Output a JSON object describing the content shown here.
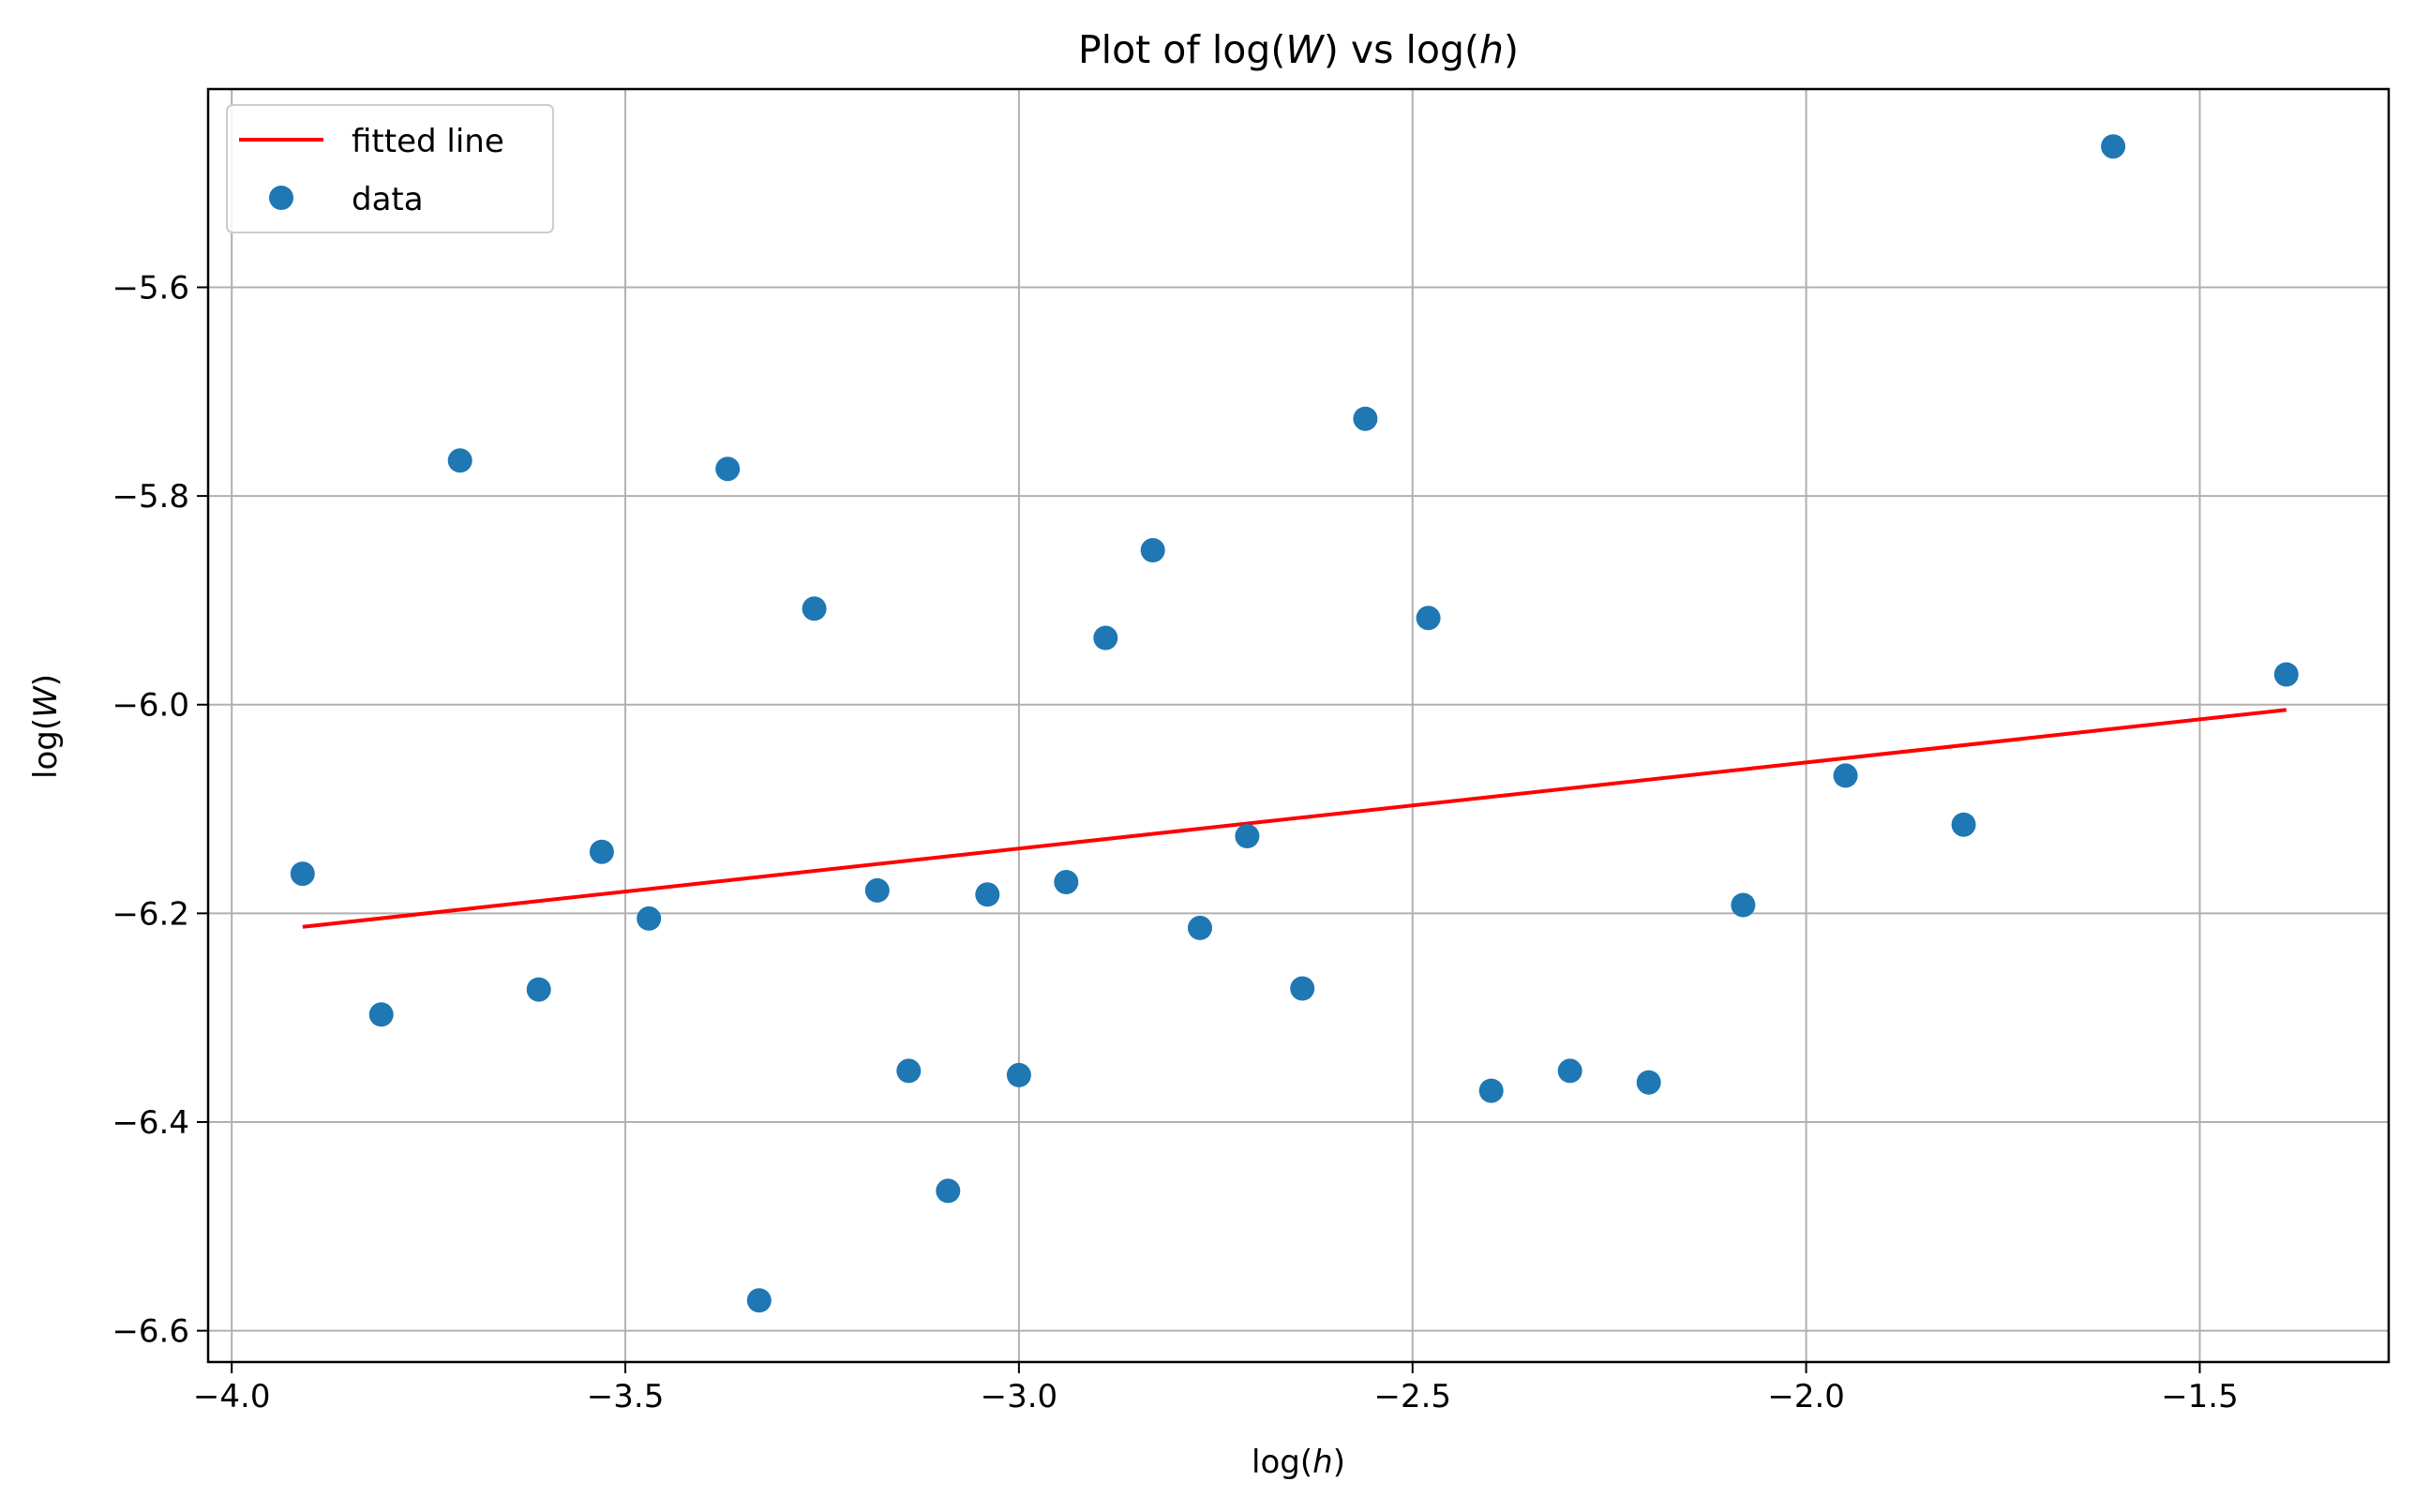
{
  "chart_data": {
    "type": "scatter",
    "title": {
      "prefix": "Plot of log(",
      "var1": "W",
      "middle": ") vs log(",
      "var2": "h",
      "suffix": ")"
    },
    "xlabel": {
      "prefix": "log(",
      "var": "h",
      "suffix": ")"
    },
    "ylabel": {
      "prefix": "log(",
      "var": "W",
      "suffix": ")"
    },
    "xlim": [
      -4.03,
      -1.26
    ],
    "ylim": [
      -6.63,
      -5.41
    ],
    "xticks": [
      {
        "value": -4.0,
        "label": "−4.0"
      },
      {
        "value": -3.5,
        "label": "−3.5"
      },
      {
        "value": -3.0,
        "label": "−3.0"
      },
      {
        "value": -2.5,
        "label": "−2.5"
      },
      {
        "value": -2.0,
        "label": "−2.0"
      },
      {
        "value": -1.5,
        "label": "−1.5"
      }
    ],
    "yticks": [
      {
        "value": -5.6,
        "label": "−5.6"
      },
      {
        "value": -5.8,
        "label": "−5.8"
      },
      {
        "value": -6.0,
        "label": "−6.0"
      },
      {
        "value": -6.2,
        "label": "−6.2"
      },
      {
        "value": -6.4,
        "label": "−6.4"
      },
      {
        "value": -6.6,
        "label": "−6.6"
      }
    ],
    "grid": true,
    "legend_position": "top-left",
    "legend": [
      {
        "label": "fitted line",
        "type": "line",
        "color": "#ff0000"
      },
      {
        "label": "data",
        "type": "marker",
        "color": "#1f77b4"
      }
    ],
    "series": [
      {
        "name": "data",
        "type": "scatter",
        "color": "#1f77b4",
        "points": [
          {
            "x": -3.91,
            "y": -6.162
          },
          {
            "x": -3.81,
            "y": -6.297
          },
          {
            "x": -3.71,
            "y": -5.766
          },
          {
            "x": -3.61,
            "y": -6.273
          },
          {
            "x": -3.53,
            "y": -6.141
          },
          {
            "x": -3.47,
            "y": -6.205
          },
          {
            "x": -3.37,
            "y": -5.774
          },
          {
            "x": -3.33,
            "y": -6.571
          },
          {
            "x": -3.26,
            "y": -5.908
          },
          {
            "x": -3.18,
            "y": -6.178
          },
          {
            "x": -3.14,
            "y": -6.351
          },
          {
            "x": -3.09,
            "y": -6.466
          },
          {
            "x": -3.04,
            "y": -6.182
          },
          {
            "x": -3.0,
            "y": -6.355
          },
          {
            "x": -2.94,
            "y": -6.17
          },
          {
            "x": -2.89,
            "y": -5.936
          },
          {
            "x": -2.83,
            "y": -5.852
          },
          {
            "x": -2.77,
            "y": -6.214
          },
          {
            "x": -2.71,
            "y": -6.126
          },
          {
            "x": -2.64,
            "y": -6.272
          },
          {
            "x": -2.56,
            "y": -5.726
          },
          {
            "x": -2.48,
            "y": -5.917
          },
          {
            "x": -2.4,
            "y": -6.37
          },
          {
            "x": -2.3,
            "y": -6.351
          },
          {
            "x": -2.2,
            "y": -6.362
          },
          {
            "x": -2.08,
            "y": -6.192
          },
          {
            "x": -1.95,
            "y": -6.068
          },
          {
            "x": -1.8,
            "y": -6.115
          },
          {
            "x": -1.61,
            "y": -5.465
          },
          {
            "x": -1.39,
            "y": -5.971
          }
        ]
      },
      {
        "name": "fitted line",
        "type": "line",
        "color": "#ff0000",
        "points": [
          {
            "x": -3.91,
            "y": -6.213
          },
          {
            "x": -1.39,
            "y": -6.005
          }
        ]
      }
    ]
  }
}
